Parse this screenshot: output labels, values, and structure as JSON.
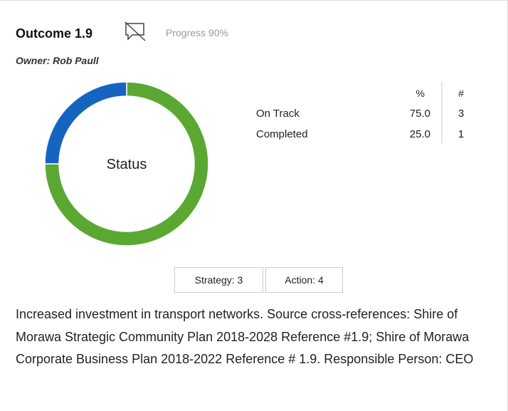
{
  "header": {
    "title": "Outcome 1.9",
    "progress": "Progress 90%",
    "owner": "Owner: Rob Paull"
  },
  "chart_data": {
    "type": "donut",
    "center_label": "Status",
    "categories": [
      "On Track",
      "Completed"
    ],
    "values": [
      75,
      25
    ],
    "value_labels": [
      "75.0",
      "25.0"
    ],
    "counts": [
      3,
      1
    ],
    "colors": [
      "#5aa832",
      "#1565c0"
    ],
    "table_headers": [
      "%",
      "#"
    ]
  },
  "buttons": [
    "Strategy: 3",
    "Action: 4"
  ],
  "description": "Increased investment in transport networks. Source cross-references: Shire of Morawa Strategic Community Plan 2018-2028 Reference #1.9; Shire of Morawa Corporate Business Plan 2018-2022 Reference # 1.9. Responsible Person: CEO"
}
